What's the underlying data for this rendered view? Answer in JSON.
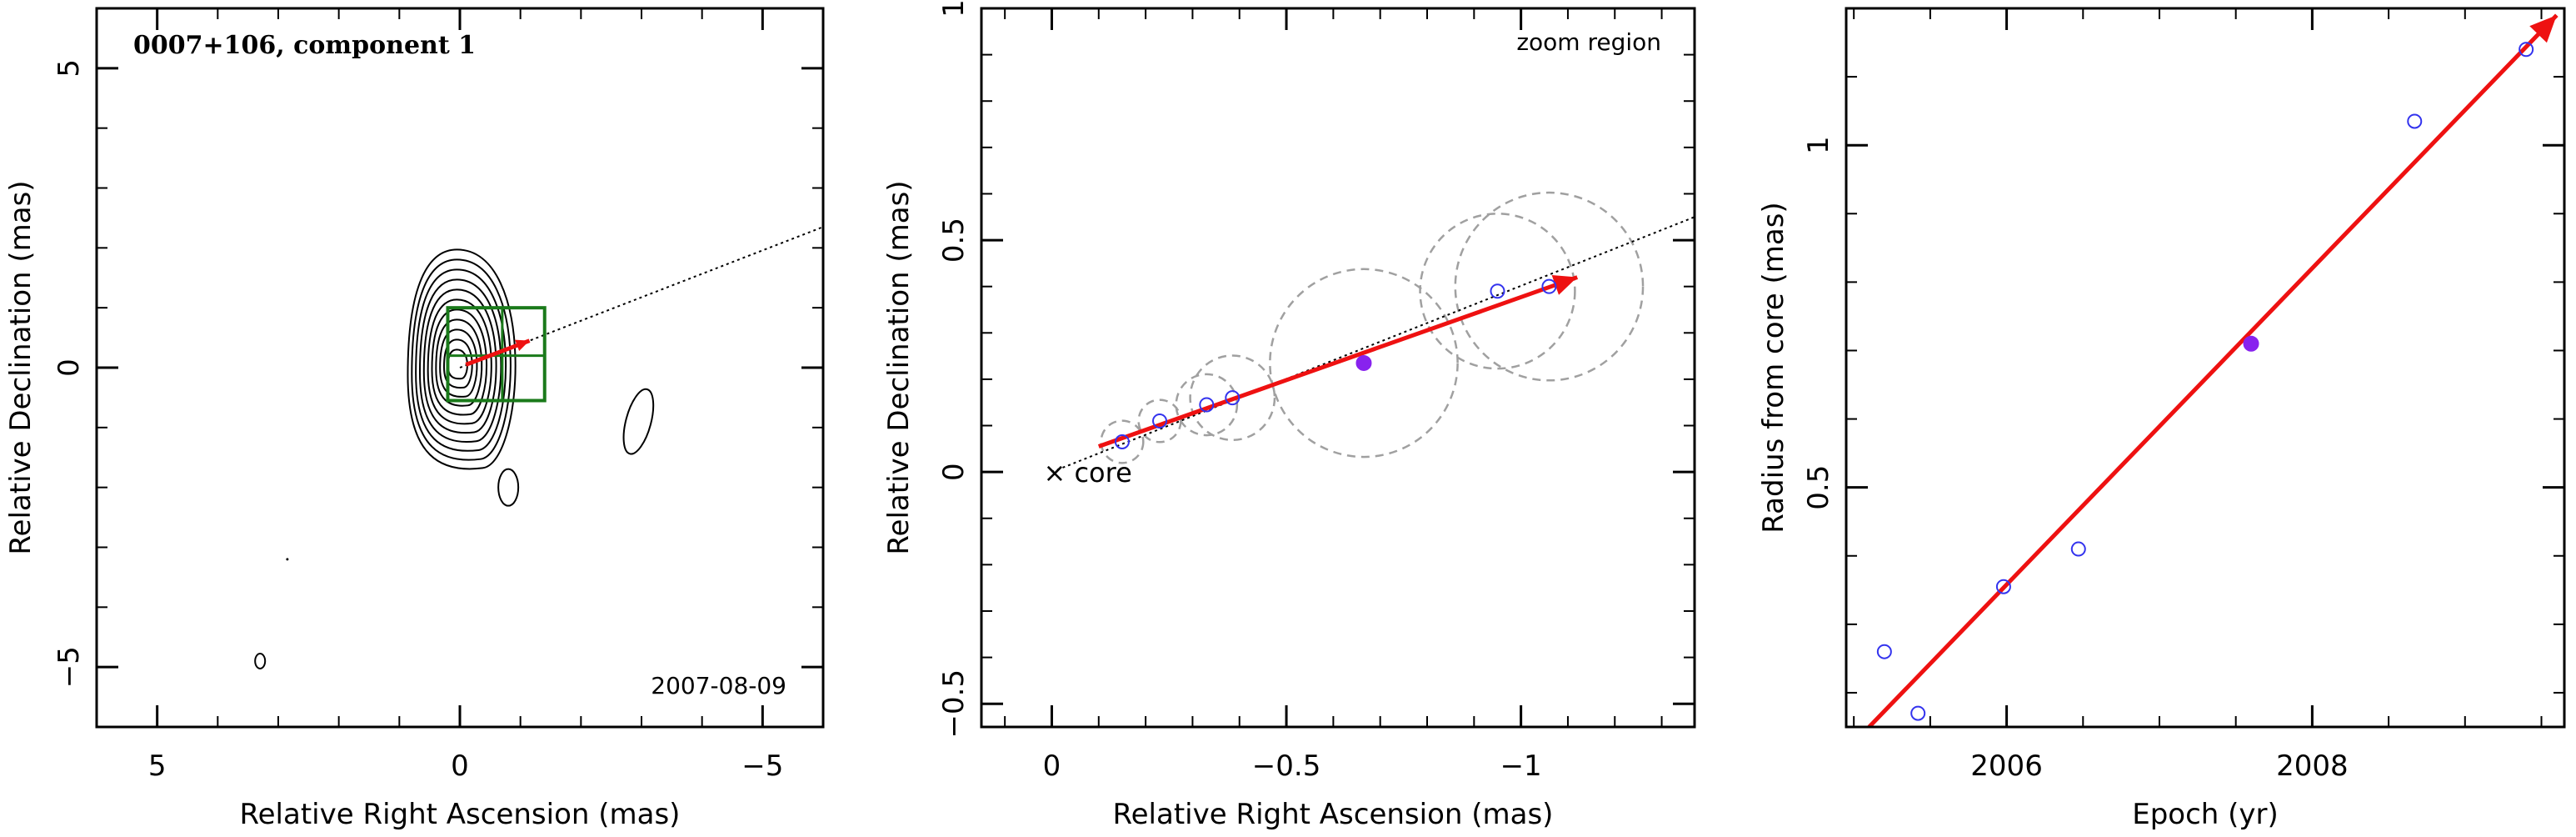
{
  "colors": {
    "contour": "#000000",
    "box": "#1a7a1a",
    "arrow": "#ee1111",
    "point": "#3333ee",
    "point_fill": "#8822ee",
    "circle": "#a0a0a0",
    "dotted": "#000000"
  },
  "chart_data": [
    {
      "type": "contour",
      "title": "0007+106, component 1",
      "annotation": "2007-08-09",
      "xlabel": "Relative Right Ascension (mas)",
      "ylabel": "Relative Declination (mas)",
      "xlim": [
        6,
        -6
      ],
      "ylim": [
        -6,
        6
      ],
      "xticks": [
        5,
        0,
        -5
      ],
      "yticks": [
        5,
        0,
        -5
      ],
      "xtick_labels": [
        "5",
        "0",
        "−5"
      ],
      "ytick_labels": [
        "5",
        "0",
        "−5"
      ],
      "contour_levels": 11,
      "zoom_box": {
        "x": [
          0.2,
          -1.4
        ],
        "y": [
          -0.55,
          1.0
        ]
      },
      "arrow": {
        "from": [
          -0.1,
          0.05
        ],
        "to": [
          -1.15,
          0.45
        ]
      },
      "trajectory_line": {
        "from": [
          0,
          0
        ],
        "to": [
          -6,
          2.35
        ]
      }
    },
    {
      "type": "scatter",
      "annotation": "zoom region",
      "core_label": "× core",
      "xlabel": "Relative Right Ascension (mas)",
      "ylabel": "Relative Declination (mas)",
      "xlim": [
        0.15,
        -1.37
      ],
      "ylim": [
        -0.55,
        1.0
      ],
      "xticks": [
        0,
        -0.5,
        -1
      ],
      "yticks": [
        -0.5,
        0,
        0.5,
        1
      ],
      "xtick_labels": [
        "0",
        "−0.5",
        "−1"
      ],
      "ytick_labels": [
        "−0.5",
        "0",
        "0.5",
        "1"
      ],
      "points": [
        {
          "x": -0.15,
          "y": 0.065,
          "r": 0.045
        },
        {
          "x": -0.23,
          "y": 0.11,
          "r": 0.045
        },
        {
          "x": -0.33,
          "y": 0.145,
          "r": 0.065
        },
        {
          "x": -0.385,
          "y": 0.16,
          "r": 0.09
        },
        {
          "x": -1.06,
          "y": 0.4,
          "r": 0.2
        },
        {
          "x": -0.95,
          "y": 0.39,
          "r": 0.165
        }
      ],
      "filled_point": {
        "x": -0.665,
        "y": 0.235,
        "r": 0.2
      },
      "arrow": {
        "from": [
          -0.1,
          0.055
        ],
        "to": [
          -1.12,
          0.42
        ]
      },
      "trajectory_line": {
        "from": [
          0,
          0
        ],
        "to": [
          -1.37,
          0.55
        ]
      }
    },
    {
      "type": "scatter",
      "xlabel": "Epoch (yr)",
      "ylabel": "Radius from core (mas)",
      "xlim": [
        2004.95,
        2009.65
      ],
      "ylim": [
        0.15,
        1.2
      ],
      "xticks": [
        2006,
        2008
      ],
      "yticks": [
        0.5,
        1
      ],
      "xtick_labels": [
        "2006",
        "2008"
      ],
      "ytick_labels": [
        "0.5",
        "1"
      ],
      "points": [
        {
          "x": 2005.2,
          "y": 0.26
        },
        {
          "x": 2005.42,
          "y": 0.17
        },
        {
          "x": 2005.98,
          "y": 0.355
        },
        {
          "x": 2006.47,
          "y": 0.41
        },
        {
          "x": 2008.67,
          "y": 1.035
        },
        {
          "x": 2009.4,
          "y": 1.14
        }
      ],
      "filled_point": {
        "x": 2007.6,
        "y": 0.71
      },
      "fit_line": {
        "from": [
          2005.1,
          0.15
        ],
        "to": [
          2009.6,
          1.19
        ]
      }
    }
  ]
}
